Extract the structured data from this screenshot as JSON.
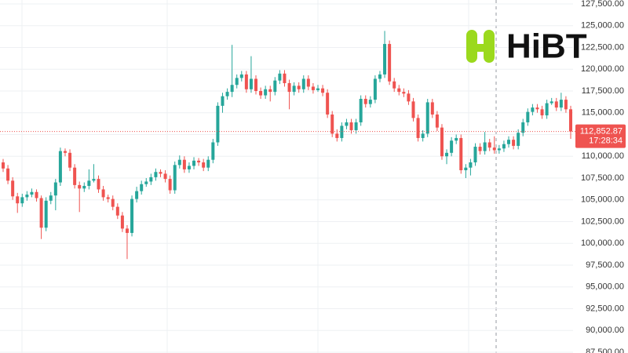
{
  "chart_data": {
    "type": "candlestick",
    "logo": "HiBT",
    "up_color": "#26a69a",
    "down_color": "#ef5350",
    "ylim": [
      87500,
      127500
    ],
    "yticks": [
      {
        "value": 87500,
        "label": "87,500.00"
      },
      {
        "value": 90000,
        "label": "90,000.00"
      },
      {
        "value": 92500,
        "label": "92,500.00"
      },
      {
        "value": 95000,
        "label": "95,000.00"
      },
      {
        "value": 97500,
        "label": "97,500.00"
      },
      {
        "value": 100000,
        "label": "100,000.00"
      },
      {
        "value": 102500,
        "label": "102,500.00"
      },
      {
        "value": 105000,
        "label": "105,000.00"
      },
      {
        "value": 107500,
        "label": "107,500.00"
      },
      {
        "value": 110000,
        "label": "110,000.00"
      },
      {
        "value": 112500,
        "label": "112,500.00"
      },
      {
        "value": 115000,
        "label": "115,000.00"
      },
      {
        "value": 117500,
        "label": "117,500.00"
      },
      {
        "value": 120000,
        "label": "120,000.00"
      },
      {
        "value": 122500,
        "label": "122,500.00"
      },
      {
        "value": 125000,
        "label": "125,000.00"
      },
      {
        "value": 127500,
        "label": "127,500.00"
      }
    ],
    "grid": true,
    "last_price": {
      "value": 112852.87,
      "label": "112,852.87"
    },
    "last_time": "17:28:34",
    "ohlc": [
      [
        109300,
        109700,
        108200,
        108600
      ],
      [
        108600,
        109000,
        106800,
        107200
      ],
      [
        107200,
        107600,
        105000,
        105400
      ],
      [
        105400,
        105800,
        103500,
        104600
      ],
      [
        104600,
        105700,
        104200,
        105300
      ],
      [
        105300,
        106000,
        104900,
        105600
      ],
      [
        105600,
        106300,
        105300,
        105900
      ],
      [
        105900,
        106200,
        104800,
        105200
      ],
      [
        105200,
        105500,
        100500,
        101800
      ],
      [
        101800,
        105300,
        101400,
        104900
      ],
      [
        104900,
        105900,
        104500,
        105500
      ],
      [
        105500,
        107400,
        103800,
        107000
      ],
      [
        107000,
        111000,
        106600,
        110600
      ],
      [
        110600,
        110900,
        110000,
        110400
      ],
      [
        110400,
        110800,
        108300,
        108700
      ],
      [
        108700,
        109100,
        106300,
        106700
      ],
      [
        106700,
        107100,
        103600,
        106300
      ],
      [
        106300,
        107000,
        105900,
        106600
      ],
      [
        106600,
        108500,
        106200,
        107200
      ],
      [
        107200,
        109100,
        107000,
        107400
      ],
      [
        107400,
        107800,
        105800,
        106200
      ],
      [
        106200,
        106600,
        104900,
        105300
      ],
      [
        105300,
        105600,
        104700,
        105100
      ],
      [
        105100,
        105500,
        103800,
        104200
      ],
      [
        104200,
        104600,
        102800,
        103200
      ],
      [
        103200,
        103600,
        101300,
        101700
      ],
      [
        101700,
        102100,
        98200,
        101200
      ],
      [
        101200,
        105500,
        100800,
        105100
      ],
      [
        105100,
        106500,
        104700,
        106000
      ],
      [
        106000,
        107200,
        105600,
        106800
      ],
      [
        106800,
        107500,
        106500,
        107100
      ],
      [
        107100,
        108000,
        106700,
        107600
      ],
      [
        107600,
        108600,
        107200,
        108200
      ],
      [
        108200,
        108500,
        107600,
        108000
      ],
      [
        108000,
        108400,
        107000,
        107400
      ],
      [
        107400,
        107800,
        105700,
        106100
      ],
      [
        106100,
        109400,
        105700,
        109000
      ],
      [
        109000,
        110100,
        108600,
        109600
      ],
      [
        109600,
        110000,
        108100,
        108500
      ],
      [
        108500,
        109300,
        108100,
        108900
      ],
      [
        108900,
        109900,
        108500,
        109500
      ],
      [
        109500,
        109800,
        108900,
        109300
      ],
      [
        109300,
        109700,
        108300,
        108700
      ],
      [
        108700,
        110000,
        108300,
        109600
      ],
      [
        109600,
        112000,
        109200,
        111600
      ],
      [
        111600,
        116200,
        111200,
        115800
      ],
      [
        115800,
        117300,
        115000,
        116900
      ],
      [
        116900,
        117800,
        116500,
        117400
      ],
      [
        117400,
        122800,
        116800,
        118200
      ],
      [
        118200,
        119400,
        117800,
        119000
      ],
      [
        119000,
        119800,
        118600,
        119400
      ],
      [
        119400,
        119800,
        117300,
        117700
      ],
      [
        117700,
        121500,
        117300,
        118900
      ],
      [
        118900,
        119300,
        117100,
        117500
      ],
      [
        117500,
        117900,
        116600,
        117000
      ],
      [
        117000,
        118100,
        116600,
        117700
      ],
      [
        117700,
        118100,
        116300,
        117400
      ],
      [
        117400,
        119100,
        117000,
        118700
      ],
      [
        118700,
        119900,
        118300,
        119500
      ],
      [
        119500,
        119900,
        118000,
        118400
      ],
      [
        118400,
        118800,
        115400,
        117400
      ],
      [
        117400,
        118500,
        117000,
        118100
      ],
      [
        118100,
        118500,
        117300,
        117700
      ],
      [
        117700,
        119300,
        117300,
        118900
      ],
      [
        118900,
        119300,
        117600,
        118000
      ],
      [
        118000,
        118400,
        117200,
        117600
      ],
      [
        117600,
        118200,
        117400,
        117800
      ],
      [
        117800,
        118200,
        116900,
        117300
      ],
      [
        117300,
        117700,
        114400,
        114800
      ],
      [
        114800,
        115200,
        112200,
        112600
      ],
      [
        112600,
        113100,
        111700,
        112100
      ],
      [
        112100,
        113900,
        111700,
        113500
      ],
      [
        113500,
        114300,
        113100,
        113900
      ],
      [
        113900,
        114300,
        112600,
        113000
      ],
      [
        113000,
        114300,
        112600,
        113900
      ],
      [
        113900,
        117000,
        113500,
        116600
      ],
      [
        116600,
        117000,
        115600,
        116000
      ],
      [
        116000,
        116900,
        115600,
        116500
      ],
      [
        116500,
        119300,
        116100,
        118900
      ],
      [
        118900,
        119800,
        118500,
        119400
      ],
      [
        119400,
        124400,
        119000,
        122900
      ],
      [
        122900,
        123300,
        118200,
        118600
      ],
      [
        118600,
        119000,
        117400,
        117800
      ],
      [
        117800,
        118200,
        117000,
        117400
      ],
      [
        117400,
        117800,
        116800,
        117200
      ],
      [
        117200,
        117600,
        115900,
        116300
      ],
      [
        116300,
        116700,
        114000,
        114400
      ],
      [
        114400,
        114800,
        111700,
        112100
      ],
      [
        112100,
        113000,
        111700,
        112600
      ],
      [
        112600,
        116600,
        112200,
        116200
      ],
      [
        116200,
        116600,
        114400,
        114800
      ],
      [
        114800,
        115200,
        112900,
        113300
      ],
      [
        113300,
        113700,
        109600,
        110000
      ],
      [
        110000,
        110800,
        109100,
        110400
      ],
      [
        110400,
        112200,
        110000,
        111800
      ],
      [
        111800,
        112500,
        111400,
        112100
      ],
      [
        112100,
        112500,
        108000,
        108400
      ],
      [
        108400,
        109100,
        107500,
        108700
      ],
      [
        108700,
        109700,
        107800,
        109300
      ],
      [
        109300,
        111500,
        108900,
        111100
      ],
      [
        111100,
        111500,
        110200,
        110600
      ],
      [
        110600,
        112800,
        110200,
        111600
      ],
      [
        111600,
        112000,
        110600,
        111000
      ],
      [
        111000,
        112300,
        110300,
        110700
      ],
      [
        110700,
        111300,
        110300,
        110900
      ],
      [
        110900,
        111800,
        110500,
        111400
      ],
      [
        111400,
        112300,
        111000,
        111900
      ],
      [
        111900,
        112300,
        110800,
        111200
      ],
      [
        111200,
        113100,
        110800,
        112700
      ],
      [
        112700,
        114300,
        112300,
        113900
      ],
      [
        113900,
        115500,
        113500,
        115100
      ],
      [
        115100,
        116000,
        114700,
        115600
      ],
      [
        115600,
        116000,
        115000,
        115400
      ],
      [
        115400,
        115800,
        114300,
        114700
      ],
      [
        114700,
        116500,
        114300,
        116100
      ],
      [
        116100,
        116700,
        115900,
        116300
      ],
      [
        116300,
        116700,
        115200,
        115600
      ],
      [
        115600,
        117300,
        115200,
        116500
      ],
      [
        116500,
        116900,
        115000,
        115400
      ],
      [
        115400,
        115800,
        112000,
        112852.87
      ]
    ]
  }
}
